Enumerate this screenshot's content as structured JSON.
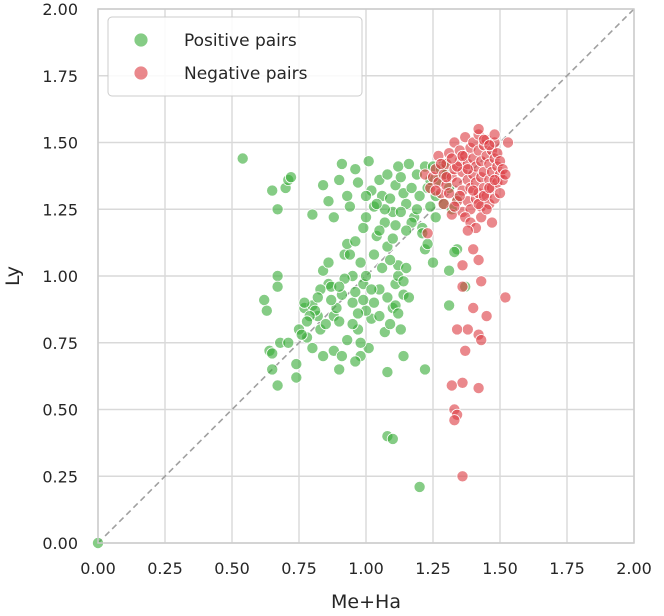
{
  "chart_data": {
    "type": "scatter",
    "xlabel": "Me+Ha",
    "ylabel": "Ly",
    "xlim": [
      0,
      2
    ],
    "ylim": [
      0,
      2
    ],
    "xticks": [
      "0.00",
      "0.25",
      "0.50",
      "0.75",
      "1.00",
      "1.25",
      "1.50",
      "1.75",
      "2.00"
    ],
    "yticks": [
      "0.00",
      "0.25",
      "0.50",
      "0.75",
      "1.00",
      "1.25",
      "1.50",
      "1.75",
      "2.00"
    ],
    "grid": true,
    "legend_position": "top-left",
    "reference_line": {
      "style": "dashed",
      "color": "#a0a0a0",
      "from": [
        0,
        0
      ],
      "to": [
        2,
        2
      ]
    },
    "series": [
      {
        "name": "Positive pairs",
        "color": "#3aac3a",
        "points": [
          [
            0.54,
            1.44
          ],
          [
            0.65,
            1.32
          ],
          [
            0.7,
            1.33
          ],
          [
            0.71,
            1.36
          ],
          [
            0.72,
            1.37
          ],
          [
            0.67,
            1.25
          ],
          [
            0.62,
            0.91
          ],
          [
            0.63,
            0.87
          ],
          [
            0.67,
            1.0
          ],
          [
            0.67,
            0.96
          ],
          [
            0.64,
            0.72
          ],
          [
            0.65,
            0.71
          ],
          [
            0.68,
            0.75
          ],
          [
            0.71,
            0.75
          ],
          [
            0.65,
            0.65
          ],
          [
            0.67,
            0.59
          ],
          [
            0.74,
            0.62
          ],
          [
            0.74,
            0.67
          ],
          [
            0.75,
            0.8
          ],
          [
            0.77,
            0.88
          ],
          [
            0.78,
            0.77
          ],
          [
            0.8,
            0.73
          ],
          [
            0.8,
            0.89
          ],
          [
            0.82,
            0.85
          ],
          [
            0.83,
            0.8
          ],
          [
            0.84,
            0.7
          ],
          [
            0.86,
            0.97
          ],
          [
            0.84,
            1.02
          ],
          [
            0.86,
            1.05
          ],
          [
            0.87,
            0.96
          ],
          [
            0.88,
            0.85
          ],
          [
            0.88,
            0.72
          ],
          [
            0.9,
            0.65
          ],
          [
            0.9,
            0.83
          ],
          [
            0.91,
            0.93
          ],
          [
            0.92,
            1.08
          ],
          [
            0.93,
            1.12
          ],
          [
            0.95,
            0.9
          ],
          [
            0.96,
            0.94
          ],
          [
            0.97,
            0.8
          ],
          [
            0.98,
            0.7
          ],
          [
            0.99,
            0.97
          ],
          [
            1.0,
            1.0
          ],
          [
            1.01,
            0.73
          ],
          [
            1.02,
            0.84
          ],
          [
            1.03,
            1.08
          ],
          [
            1.04,
            1.15
          ],
          [
            1.05,
            0.95
          ],
          [
            1.06,
            1.03
          ],
          [
            1.08,
            0.92
          ],
          [
            1.1,
            0.88
          ],
          [
            1.11,
            0.97
          ],
          [
            1.12,
            1.0
          ],
          [
            1.13,
            0.8
          ],
          [
            1.14,
            0.7
          ],
          [
            1.08,
            0.64
          ],
          [
            0.98,
            0.75
          ],
          [
            0.95,
            0.82
          ],
          [
            1.0,
            0.87
          ],
          [
            0.8,
            1.23
          ],
          [
            0.84,
            1.34
          ],
          [
            0.86,
            1.28
          ],
          [
            0.88,
            1.22
          ],
          [
            0.9,
            1.36
          ],
          [
            0.91,
            1.42
          ],
          [
            0.93,
            1.3
          ],
          [
            0.94,
            1.26
          ],
          [
            0.96,
            1.4
          ],
          [
            0.97,
            1.35
          ],
          [
            0.99,
            1.18
          ],
          [
            1.0,
            1.22
          ],
          [
            1.01,
            1.43
          ],
          [
            1.02,
            1.32
          ],
          [
            1.03,
            1.26
          ],
          [
            1.05,
            1.36
          ],
          [
            1.06,
            1.3
          ],
          [
            1.07,
            1.2
          ],
          [
            1.08,
            1.38
          ],
          [
            1.09,
            1.29
          ],
          [
            1.1,
            1.24
          ],
          [
            1.11,
            1.34
          ],
          [
            1.12,
            1.41
          ],
          [
            1.13,
            1.37
          ],
          [
            1.14,
            1.31
          ],
          [
            1.15,
            1.27
          ],
          [
            1.16,
            1.42
          ],
          [
            1.17,
            1.33
          ],
          [
            1.18,
            1.22
          ],
          [
            1.19,
            1.38
          ],
          [
            1.2,
            1.3
          ],
          [
            1.21,
            1.18
          ],
          [
            1.22,
            1.41
          ],
          [
            1.23,
            1.33
          ],
          [
            1.24,
            1.26
          ],
          [
            1.24,
            1.36
          ],
          [
            1.25,
            1.41
          ],
          [
            1.26,
            1.3
          ],
          [
            1.26,
            1.22
          ],
          [
            1.22,
            1.1
          ],
          [
            1.23,
            1.12
          ],
          [
            1.25,
            1.05
          ],
          [
            1.21,
            1.16
          ],
          [
            1.19,
            1.25
          ],
          [
            1.17,
            1.2
          ],
          [
            1.15,
            1.17
          ],
          [
            1.13,
            1.24
          ],
          [
            1.12,
            1.04
          ],
          [
            1.14,
            0.98
          ],
          [
            1.15,
            1.03
          ],
          [
            1.08,
            1.11
          ],
          [
            1.09,
            1.06
          ],
          [
            1.1,
            1.14
          ],
          [
            1.11,
            1.19
          ],
          [
            1.07,
            1.25
          ],
          [
            1.05,
            1.17
          ],
          [
            1.04,
            1.27
          ],
          [
            1.0,
            1.3
          ],
          [
            0.98,
            1.05
          ],
          [
            0.96,
            1.13
          ],
          [
            0.95,
            1.0
          ],
          [
            0.94,
            1.08
          ],
          [
            0.92,
            0.99
          ],
          [
            0.9,
            0.96
          ],
          [
            0.89,
            0.88
          ],
          [
            0.87,
            0.91
          ],
          [
            0.85,
            0.82
          ],
          [
            0.83,
            0.95
          ],
          [
            0.82,
            0.92
          ],
          [
            0.81,
            0.87
          ],
          [
            0.79,
            0.85
          ],
          [
            0.78,
            0.83
          ],
          [
            0.77,
            0.9
          ],
          [
            0.76,
            0.78
          ],
          [
            0.91,
            0.7
          ],
          [
            0.93,
            0.76
          ],
          [
            0.96,
            0.68
          ],
          [
            0.97,
            0.86
          ],
          [
            0.99,
            0.91
          ],
          [
            1.02,
            0.95
          ],
          [
            1.03,
            0.9
          ],
          [
            1.05,
            0.85
          ],
          [
            1.07,
            0.79
          ],
          [
            1.09,
            0.82
          ],
          [
            1.11,
            0.89
          ],
          [
            1.12,
            0.86
          ],
          [
            1.14,
            0.93
          ],
          [
            1.16,
            0.92
          ],
          [
            1.08,
            0.4
          ],
          [
            1.1,
            0.39
          ],
          [
            1.2,
            0.21
          ],
          [
            1.22,
            0.65
          ],
          [
            1.31,
            1.02
          ],
          [
            1.31,
            0.89
          ],
          [
            1.34,
            1.1
          ],
          [
            1.33,
            1.09
          ],
          [
            1.37,
            0.96
          ],
          [
            1.29,
            1.27
          ],
          [
            1.27,
            1.36
          ],
          [
            1.29,
            1.42
          ],
          [
            1.31,
            1.33
          ],
          [
            1.28,
            1.4
          ],
          [
            1.3,
            1.38
          ],
          [
            1.32,
            1.25
          ],
          [
            1.34,
            1.29
          ],
          [
            0.0,
            0.0
          ]
        ]
      },
      {
        "name": "Negative pairs",
        "color": "#dd3f45",
        "points": [
          [
            1.22,
            1.38
          ],
          [
            1.24,
            1.33
          ],
          [
            1.25,
            1.37
          ],
          [
            1.26,
            1.4
          ],
          [
            1.27,
            1.35
          ],
          [
            1.27,
            1.45
          ],
          [
            1.28,
            1.31
          ],
          [
            1.29,
            1.38
          ],
          [
            1.29,
            1.27
          ],
          [
            1.3,
            1.34
          ],
          [
            1.3,
            1.42
          ],
          [
            1.31,
            1.46
          ],
          [
            1.31,
            1.31
          ],
          [
            1.32,
            1.23
          ],
          [
            1.32,
            1.37
          ],
          [
            1.33,
            1.4
          ],
          [
            1.33,
            1.5
          ],
          [
            1.34,
            1.28
          ],
          [
            1.34,
            1.35
          ],
          [
            1.35,
            1.43
          ],
          [
            1.35,
            1.47
          ],
          [
            1.36,
            1.24
          ],
          [
            1.36,
            1.32
          ],
          [
            1.36,
            1.39
          ],
          [
            1.37,
            1.45
          ],
          [
            1.37,
            1.52
          ],
          [
            1.38,
            1.28
          ],
          [
            1.38,
            1.36
          ],
          [
            1.38,
            1.42
          ],
          [
            1.39,
            1.48
          ],
          [
            1.39,
            1.33
          ],
          [
            1.39,
            1.25
          ],
          [
            1.4,
            1.38
          ],
          [
            1.4,
            1.44
          ],
          [
            1.4,
            1.5
          ],
          [
            1.41,
            1.29
          ],
          [
            1.41,
            1.35
          ],
          [
            1.41,
            1.41
          ],
          [
            1.42,
            1.47
          ],
          [
            1.42,
            1.53
          ],
          [
            1.42,
            1.31
          ],
          [
            1.43,
            1.37
          ],
          [
            1.43,
            1.43
          ],
          [
            1.43,
            1.26
          ],
          [
            1.44,
            1.49
          ],
          [
            1.44,
            1.33
          ],
          [
            1.44,
            1.39
          ],
          [
            1.45,
            1.45
          ],
          [
            1.45,
            1.3
          ],
          [
            1.45,
            1.51
          ],
          [
            1.46,
            1.36
          ],
          [
            1.46,
            1.42
          ],
          [
            1.46,
            1.27
          ],
          [
            1.47,
            1.47
          ],
          [
            1.47,
            1.33
          ],
          [
            1.47,
            1.39
          ],
          [
            1.48,
            1.44
          ],
          [
            1.48,
            1.29
          ],
          [
            1.48,
            1.5
          ],
          [
            1.49,
            1.35
          ],
          [
            1.49,
            1.41
          ],
          [
            1.49,
            1.46
          ],
          [
            1.5,
            1.31
          ],
          [
            1.5,
            1.38
          ],
          [
            1.5,
            1.43
          ],
          [
            1.51,
            1.36
          ],
          [
            1.51,
            1.4
          ],
          [
            1.52,
            1.38
          ],
          [
            1.53,
            1.5
          ],
          [
            1.42,
            1.55
          ],
          [
            1.44,
            1.51
          ],
          [
            1.46,
            1.49
          ],
          [
            1.48,
            1.53
          ],
          [
            1.38,
            1.4
          ],
          [
            1.36,
            1.45
          ],
          [
            1.34,
            1.41
          ],
          [
            1.32,
            1.44
          ],
          [
            1.3,
            1.37
          ],
          [
            1.28,
            1.42
          ],
          [
            1.26,
            1.32
          ],
          [
            1.37,
            1.22
          ],
          [
            1.39,
            1.2
          ],
          [
            1.41,
            1.18
          ],
          [
            1.43,
            1.22
          ],
          [
            1.45,
            1.25
          ],
          [
            1.47,
            1.2
          ],
          [
            1.33,
            1.26
          ],
          [
            1.35,
            1.3
          ],
          [
            1.4,
            1.32
          ],
          [
            1.42,
            1.27
          ],
          [
            1.44,
            1.3
          ],
          [
            1.46,
            1.33
          ],
          [
            1.48,
            1.36
          ],
          [
            1.23,
            1.16
          ],
          [
            1.38,
            1.17
          ],
          [
            1.4,
            1.1
          ],
          [
            1.42,
            1.06
          ],
          [
            1.36,
            1.04
          ],
          [
            1.43,
            0.98
          ],
          [
            1.36,
            0.96
          ],
          [
            1.4,
            0.88
          ],
          [
            1.45,
            0.85
          ],
          [
            1.42,
            0.78
          ],
          [
            1.43,
            0.76
          ],
          [
            1.52,
            0.92
          ],
          [
            1.38,
            0.8
          ],
          [
            1.34,
            0.8
          ],
          [
            1.37,
            0.72
          ],
          [
            1.36,
            0.6
          ],
          [
            1.32,
            0.59
          ],
          [
            1.42,
            0.58
          ],
          [
            1.33,
            0.5
          ],
          [
            1.34,
            0.48
          ],
          [
            1.33,
            0.46
          ],
          [
            1.36,
            0.25
          ]
        ]
      }
    ]
  }
}
